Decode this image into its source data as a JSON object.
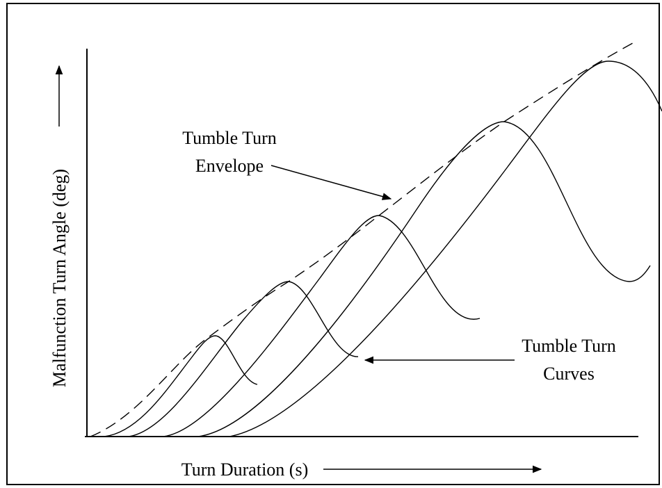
{
  "axes": {
    "y_label": "Malfunction Turn Angle (deg)",
    "x_label": "Turn Duration (s)"
  },
  "annotations": [
    {
      "lines": [
        "Tumble Turn",
        "Envelope"
      ]
    },
    {
      "lines": [
        "Tumble Turn",
        "Curves"
      ]
    }
  ]
}
